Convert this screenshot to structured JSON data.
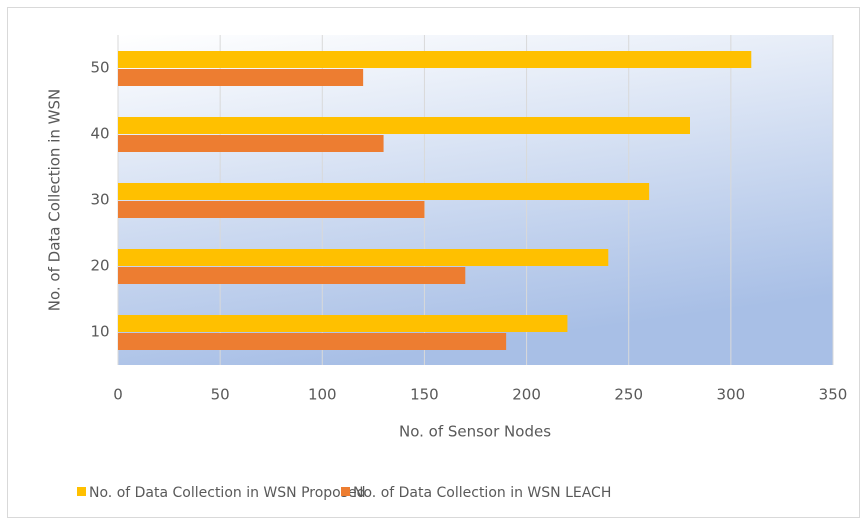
{
  "chart_data": {
    "type": "hbar",
    "x_label": "No. of Sensor Nodes",
    "y_label": "No. of Data Collection in WSN",
    "categories": [
      "10",
      "20",
      "30",
      "40",
      "50"
    ],
    "series": [
      {
        "name": "No. of Data Collection in WSN Proposed",
        "color": "#ffc000",
        "values": [
          220,
          240,
          260,
          280,
          310
        ]
      },
      {
        "name": "No. of Data Collection in WSN LEACH",
        "color": "#ed7d31",
        "values": [
          190,
          170,
          150,
          130,
          120
        ]
      }
    ],
    "xlim": [
      0,
      350
    ],
    "xticks": [
      0,
      50,
      100,
      150,
      200,
      250,
      300,
      350
    ],
    "grid": true,
    "legend": "bottom"
  }
}
